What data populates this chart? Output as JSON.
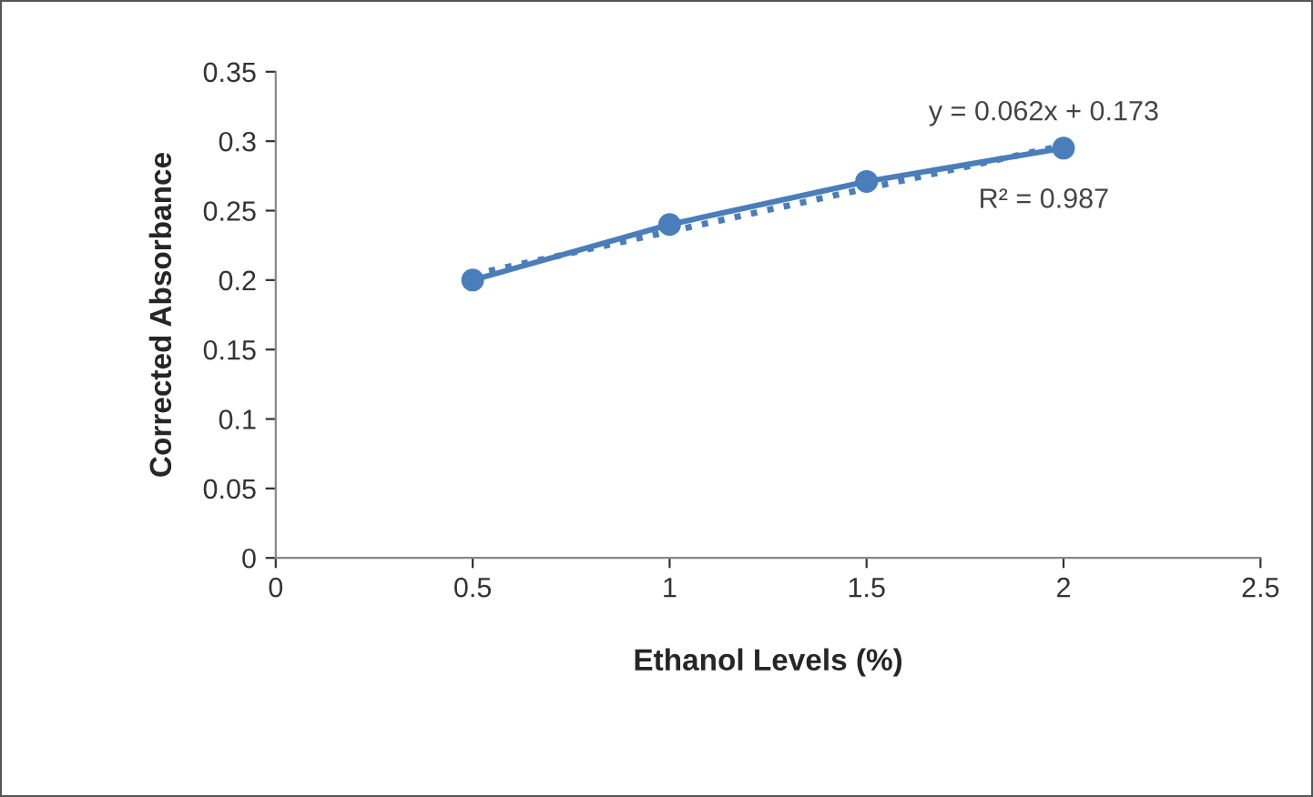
{
  "chart_data": {
    "type": "line",
    "xlabel": "Ethanol Levels (%)",
    "ylabel": "Corrected Absorbance",
    "x": [
      0.5,
      1,
      1.5,
      2
    ],
    "series": [
      {
        "color": "#4a7ebb",
        "values": [
          0.2,
          0.24,
          0.271,
          0.295
        ],
        "marker": "circle",
        "line_style": "solid"
      },
      {
        "type": "line",
        "x": [
          0.5,
          2
        ],
        "color": "#4a7ebb",
        "values": [
          0.204,
          0.297
        ],
        "marker": "none",
        "line_style": "dotted"
      }
    ],
    "annotations": [
      "y = 0.062x + 0.173",
      "R² = 0.987"
    ],
    "xlim": [
      0,
      2.5
    ],
    "xticks": [
      0,
      0.5,
      1,
      1.5,
      2,
      2.5
    ],
    "ylim": [
      0,
      0.35
    ],
    "yticks": [
      0,
      0.05,
      0.1,
      0.15,
      0.2,
      0.25,
      0.3,
      0.35
    ],
    "grid": false,
    "legend": false
  }
}
